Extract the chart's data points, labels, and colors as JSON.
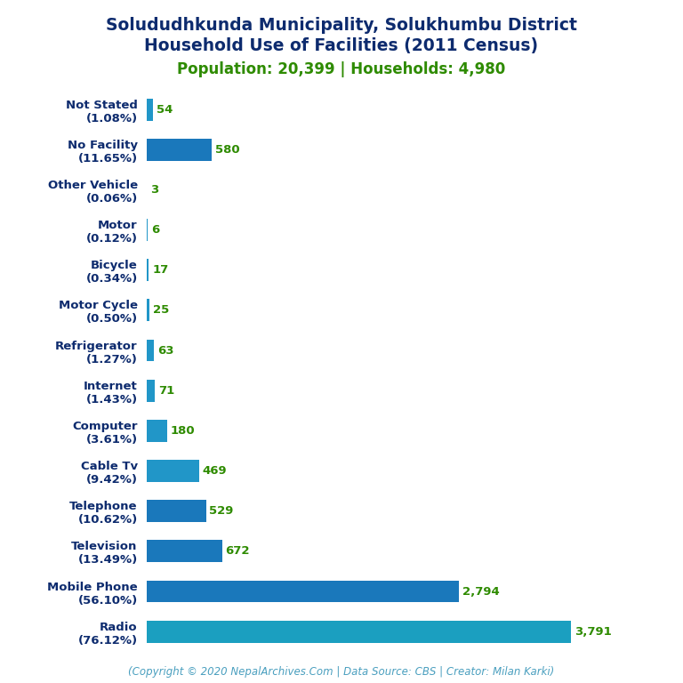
{
  "title_line1": "Solududhkunda Municipality, Solukhumbu District",
  "title_line2": "Household Use of Facilities (2011 Census)",
  "subtitle": "Population: 20,399 | Households: 4,980",
  "footer": "(Copyright © 2020 NepalArchives.Com | Data Source: CBS | Creator: Milan Karki)",
  "categories": [
    "Not Stated\n(1.08%)",
    "No Facility\n(11.65%)",
    "Other Vehicle\n(0.06%)",
    "Motor\n(0.12%)",
    "Bicycle\n(0.34%)",
    "Motor Cycle\n(0.50%)",
    "Refrigerator\n(1.27%)",
    "Internet\n(1.43%)",
    "Computer\n(3.61%)",
    "Cable Tv\n(9.42%)",
    "Telephone\n(10.62%)",
    "Television\n(13.49%)",
    "Mobile Phone\n(56.10%)",
    "Radio\n(76.12%)"
  ],
  "values": [
    54,
    580,
    3,
    6,
    17,
    25,
    63,
    71,
    180,
    469,
    529,
    672,
    2794,
    3791
  ],
  "bar_colors": [
    "#2196c8",
    "#1a78bb",
    "#2196c8",
    "#2196c8",
    "#2196c8",
    "#2196c8",
    "#2196c8",
    "#2196c8",
    "#2196c8",
    "#2196c8",
    "#1a78bb",
    "#1a78bb",
    "#1a78bb",
    "#1b9fc0"
  ],
  "title_color": "#0d2b6e",
  "subtitle_color": "#2e8b00",
  "value_color": "#2e8b00",
  "footer_color": "#4a9fbf",
  "ylabel_color": "#0d2b6e",
  "background_color": "#ffffff",
  "title_fontsize": 13.5,
  "subtitle_fontsize": 12,
  "label_fontsize": 9.5,
  "value_fontsize": 9.5,
  "footer_fontsize": 8.5
}
